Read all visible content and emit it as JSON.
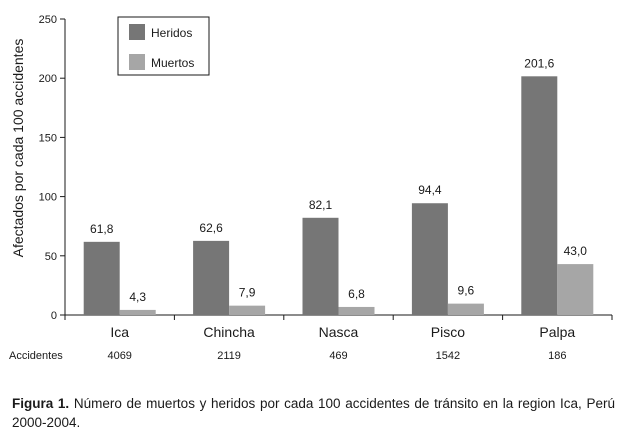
{
  "chart_data": {
    "type": "bar",
    "categories": [
      "Ica",
      "Chincha",
      "Nasca",
      "Pisco",
      "Palpa"
    ],
    "series": [
      {
        "name": "Heridos",
        "values": [
          61.8,
          62.6,
          82.1,
          94.4,
          201.6
        ],
        "labels": [
          "61,8",
          "62,6",
          "82,1",
          "94,4",
          "201,6"
        ],
        "color": "#767676"
      },
      {
        "name": "Muertos",
        "values": [
          4.3,
          7.9,
          6.8,
          9.6,
          43.0
        ],
        "labels": [
          "4,3",
          "7,9",
          "6,8",
          "9,6",
          "43,0"
        ],
        "color": "#a6a6a6"
      }
    ],
    "ylabel": "Afectados por cada 100 accidentes",
    "ylim": [
      0,
      250
    ],
    "yticks": [
      0,
      50,
      100,
      150,
      200,
      250
    ],
    "ytick_labels": [
      "0",
      "50",
      "100",
      "150",
      "200",
      "250"
    ],
    "grid": false,
    "legend_position": "top-left",
    "accidentes": {
      "label": "Accidentes",
      "values": [
        "4069",
        "2119",
        "469",
        "1542",
        "186"
      ]
    }
  },
  "caption": {
    "label": "Figura 1.",
    "text": " Número de muertos y heridos por cada 100 accidentes de tránsito en la region Ica, Perú 2000-2004."
  }
}
